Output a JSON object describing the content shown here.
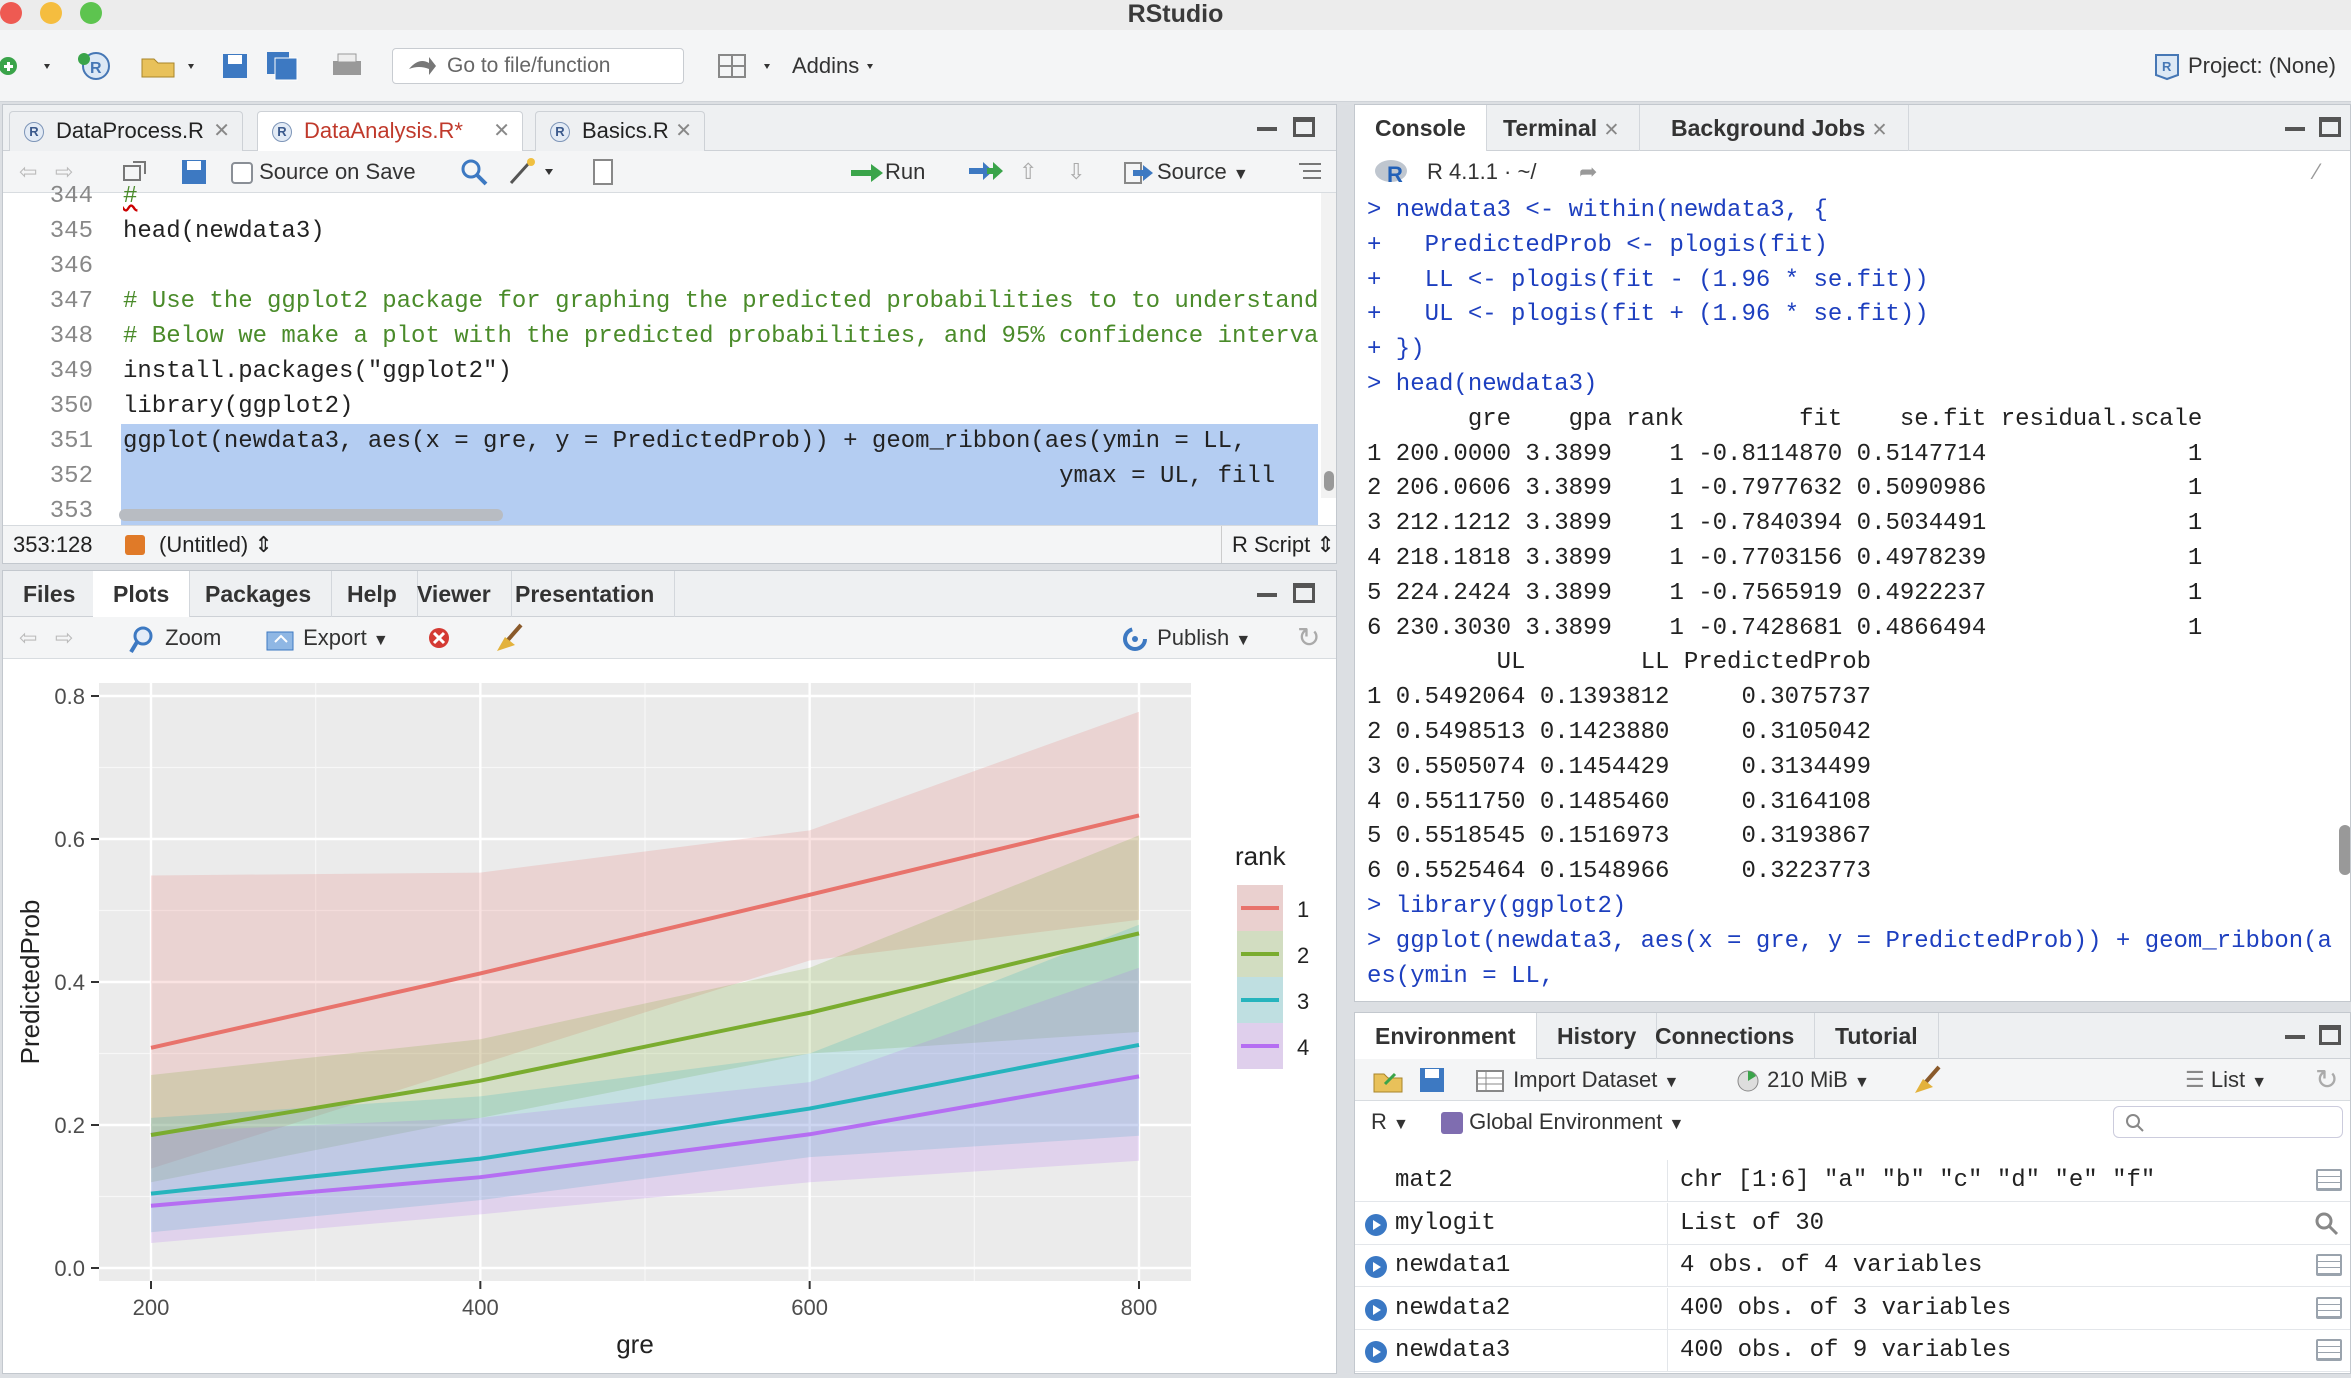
{
  "app": {
    "title": "RStudio",
    "project": "Project: (None)"
  },
  "toolbar": {
    "goto": "Go to file/function",
    "addins": "Addins"
  },
  "editor": {
    "tabs": [
      "DataProcess.R",
      "DataAnalysis.R*",
      "Basics.R"
    ],
    "source_on_save": "Source on Save",
    "run": "Run",
    "source": "Source",
    "lines": [
      {
        "n": "345",
        "t": "head(newdata3)"
      },
      {
        "n": "346",
        "t": ""
      },
      {
        "n": "347",
        "t": "# Use the ggplot2 package for graphing the predicted probabilities to to understand"
      },
      {
        "n": "348",
        "t": "# Below we make a plot with the predicted probabilities, and 95% confidence interva"
      },
      {
        "n": "349",
        "t": "install.packages(\"ggplot2\")"
      },
      {
        "n": "350",
        "t": "library(ggplot2)"
      },
      {
        "n": "351",
        "t": "ggplot(newdata3, aes(x = gre, y = PredictedProb)) + geom_ribbon(aes(ymin = LL,"
      },
      {
        "n": "352",
        "t": "                                                                 ymax = UL, fill"
      },
      {
        "n": "353",
        "t": ""
      }
    ],
    "status_pos": "353:128",
    "status_scope": "(Untitled)",
    "status_type": "R Script"
  },
  "files_pane": {
    "tabs": [
      "Files",
      "Plots",
      "Packages",
      "Help",
      "Viewer",
      "Presentation"
    ],
    "zoom": "Zoom",
    "export": "Export",
    "publish": "Publish"
  },
  "console": {
    "tabs": [
      "Console",
      "Terminal",
      "Background Jobs"
    ],
    "version": "R 4.1.1 · ~/",
    "lines": [
      {
        "t": "> newdata3 <- within(newdata3, {",
        "c": "blue"
      },
      {
        "t": "+   PredictedProb <- plogis(fit)",
        "c": "blue"
      },
      {
        "t": "+   LL <- plogis(fit - (1.96 * se.fit))",
        "c": "blue"
      },
      {
        "t": "+   UL <- plogis(fit + (1.96 * se.fit))",
        "c": "blue"
      },
      {
        "t": "+ })",
        "c": "blue"
      },
      {
        "t": "> head(newdata3)",
        "c": "blue"
      },
      {
        "t": "       gre    gpa rank        fit    se.fit residual.scale",
        "c": ""
      },
      {
        "t": "1 200.0000 3.3899    1 -0.8114870 0.5147714              1",
        "c": ""
      },
      {
        "t": "2 206.0606 3.3899    1 -0.7977632 0.5090986              1",
        "c": ""
      },
      {
        "t": "3 212.1212 3.3899    1 -0.7840394 0.5034491              1",
        "c": ""
      },
      {
        "t": "4 218.1818 3.3899    1 -0.7703156 0.4978239              1",
        "c": ""
      },
      {
        "t": "5 224.2424 3.3899    1 -0.7565919 0.4922237              1",
        "c": ""
      },
      {
        "t": "6 230.3030 3.3899    1 -0.7428681 0.4866494              1",
        "c": ""
      },
      {
        "t": "         UL        LL PredictedProb",
        "c": ""
      },
      {
        "t": "1 0.5492064 0.1393812     0.3075737",
        "c": ""
      },
      {
        "t": "2 0.5498513 0.1423880     0.3105042",
        "c": ""
      },
      {
        "t": "3 0.5505074 0.1454429     0.3134499",
        "c": ""
      },
      {
        "t": "4 0.5511750 0.1485460     0.3164108",
        "c": ""
      },
      {
        "t": "5 0.5518545 0.1516973     0.3193867",
        "c": ""
      },
      {
        "t": "6 0.5525464 0.1548966     0.3223773",
        "c": ""
      },
      {
        "t": "> library(ggplot2)",
        "c": "blue"
      },
      {
        "t": "> ggplot(newdata3, aes(x = gre, y = PredictedProb)) + geom_ribbon(a",
        "c": "blue"
      },
      {
        "t": "es(ymin = LL,",
        "c": "blue"
      }
    ]
  },
  "environment": {
    "tabs": [
      "Environment",
      "History",
      "Connections",
      "Tutorial"
    ],
    "import": "Import Dataset",
    "memory": "210 MiB",
    "view": "List",
    "lang": "R",
    "scope": "Global Environment",
    "rows": [
      {
        "name": "mat2",
        "value": "chr [1:6] \"a\" \"b\" \"c\" \"d\" \"e\" \"f\"",
        "arrow": false,
        "icon": "grid"
      },
      {
        "name": "mylogit",
        "value": "List of  30",
        "arrow": true,
        "icon": "search"
      },
      {
        "name": "newdata1",
        "value": "4 obs. of 4 variables",
        "arrow": true,
        "icon": "grid"
      },
      {
        "name": "newdata2",
        "value": "400 obs. of 3 variables",
        "arrow": true,
        "icon": "grid"
      },
      {
        "name": "newdata3",
        "value": "400 obs. of 9 variables",
        "arrow": true,
        "icon": "grid"
      }
    ]
  },
  "chart_data": {
    "type": "line",
    "xlabel": "gre",
    "ylabel": "PredictedProb",
    "xlim": [
      200,
      800
    ],
    "ylim": [
      0,
      0.8
    ],
    "xticks": [
      "200",
      "400",
      "600",
      "800"
    ],
    "yticks": [
      "0.0",
      "0.2",
      "0.4",
      "0.6",
      "0.8"
    ],
    "legend_title": "rank",
    "legend_position": "right",
    "grid": true,
    "series": [
      {
        "name": "1",
        "color": "#e8736c",
        "x": [
          200,
          400,
          600,
          800
        ],
        "y": [
          0.308,
          0.412,
          0.522,
          0.633
        ],
        "ll": [
          0.139,
          0.285,
          0.43,
          0.487
        ],
        "ul": [
          0.549,
          0.553,
          0.612,
          0.778
        ]
      },
      {
        "name": "2",
        "color": "#7aac2f",
        "x": [
          200,
          400,
          600,
          800
        ],
        "y": [
          0.186,
          0.262,
          0.357,
          0.468
        ],
        "ll": [
          0.12,
          0.21,
          0.3,
          0.33
        ],
        "ul": [
          0.27,
          0.32,
          0.42,
          0.605
        ]
      },
      {
        "name": "3",
        "color": "#26b4bd",
        "x": [
          200,
          400,
          600,
          800
        ],
        "y": [
          0.104,
          0.153,
          0.223,
          0.312
        ],
        "ll": [
          0.05,
          0.095,
          0.155,
          0.185
        ],
        "ul": [
          0.21,
          0.24,
          0.3,
          0.48
        ]
      },
      {
        "name": "4",
        "color": "#b56ef2",
        "x": [
          200,
          400,
          600,
          800
        ],
        "y": [
          0.087,
          0.127,
          0.187,
          0.268
        ],
        "ll": [
          0.035,
          0.075,
          0.12,
          0.15
        ],
        "ul": [
          0.19,
          0.21,
          0.26,
          0.42
        ]
      }
    ]
  }
}
